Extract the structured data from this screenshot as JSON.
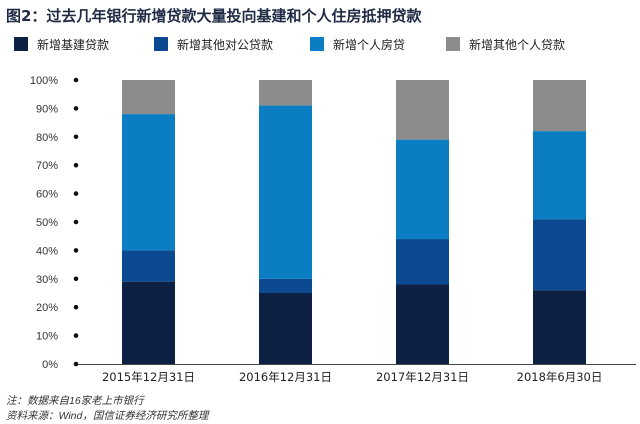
{
  "title": "图2：过去几年银行新增贷款大量投向基建和个人住房抵押贷款",
  "notes": {
    "note": "注：数据来自16家老上市银行",
    "source": "资料来源：Wind，国信证券经济研究所整理"
  },
  "chart_data": {
    "type": "bar",
    "stacked": true,
    "normalized": true,
    "categories": [
      "2015年12月31日",
      "2016年12月31日",
      "2017年12月31日",
      "2018年6月30日"
    ],
    "series": [
      {
        "name": "新增基建贷款",
        "color": "#0d2145",
        "values": [
          29,
          25,
          28,
          26
        ]
      },
      {
        "name": "新增其他对公贷款",
        "color": "#0b4a91",
        "values": [
          11,
          5,
          16,
          25
        ]
      },
      {
        "name": "新增个人房贷",
        "color": "#0a7dc3",
        "values": [
          48,
          61,
          35,
          31
        ]
      },
      {
        "name": "新增其他个人贷款",
        "color": "#8c8c8c",
        "values": [
          12,
          9,
          21,
          18
        ]
      }
    ],
    "yticks": [
      "0%",
      "10%",
      "20%",
      "30%",
      "40%",
      "50%",
      "60%",
      "70%",
      "80%",
      "90%",
      "100%"
    ],
    "ylim": [
      0,
      100
    ],
    "legend_position": "top",
    "grid": false
  }
}
